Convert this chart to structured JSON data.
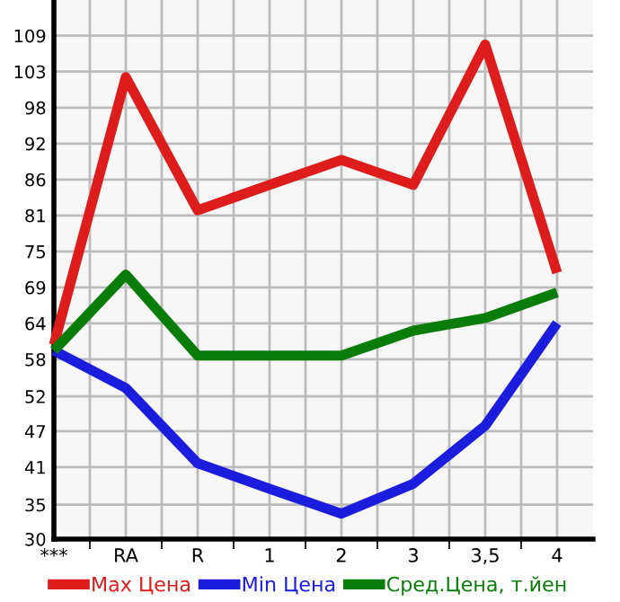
{
  "chart_data": {
    "type": "line",
    "categories": [
      "***",
      "RA",
      "R",
      "1",
      "2",
      "3",
      "3,5",
      "4"
    ],
    "series": [
      {
        "name": "Max Цена",
        "color": "#dd1c1c",
        "values": [
          60.5,
          102.5,
          81.6,
          85.6,
          89.5,
          85.6,
          107.6,
          71.8
        ]
      },
      {
        "name": "Min Цена",
        "color": "#1c1cdd",
        "values": [
          59.6,
          53.7,
          41.9,
          37.9,
          34.0,
          38.7,
          47.8,
          63.9
        ]
      },
      {
        "name": "Сред.Цена, т.йен",
        "color": "#0a7c0a",
        "values": [
          59.6,
          71.5,
          58.8,
          58.8,
          58.8,
          62.7,
          64.7,
          68.7
        ]
      }
    ],
    "ylim": [
      30,
      114.6
    ],
    "yticks": [
      30,
      {
        "value": 35.4,
        "label": "35"
      },
      {
        "value": 41.29,
        "label": "41"
      },
      {
        "value": 46.93,
        "label": "47"
      },
      {
        "value": 52.4,
        "label": "52"
      },
      {
        "value": 58.21,
        "label": "58"
      },
      {
        "value": 63.86,
        "label": "64"
      },
      {
        "value": 69.5,
        "label": "69"
      },
      {
        "value": 75.14,
        "label": "75"
      },
      {
        "value": 80.79,
        "label": "81"
      },
      {
        "value": 86.43,
        "label": "86"
      },
      {
        "value": 92.07,
        "label": "92"
      },
      {
        "value": 97.71,
        "label": "98"
      },
      {
        "value": 103.36,
        "label": "103"
      },
      {
        "value": 109.0,
        "label": "109"
      }
    ],
    "grid": true,
    "legend": "bottom",
    "marker": "none",
    "line_style": "solid"
  }
}
